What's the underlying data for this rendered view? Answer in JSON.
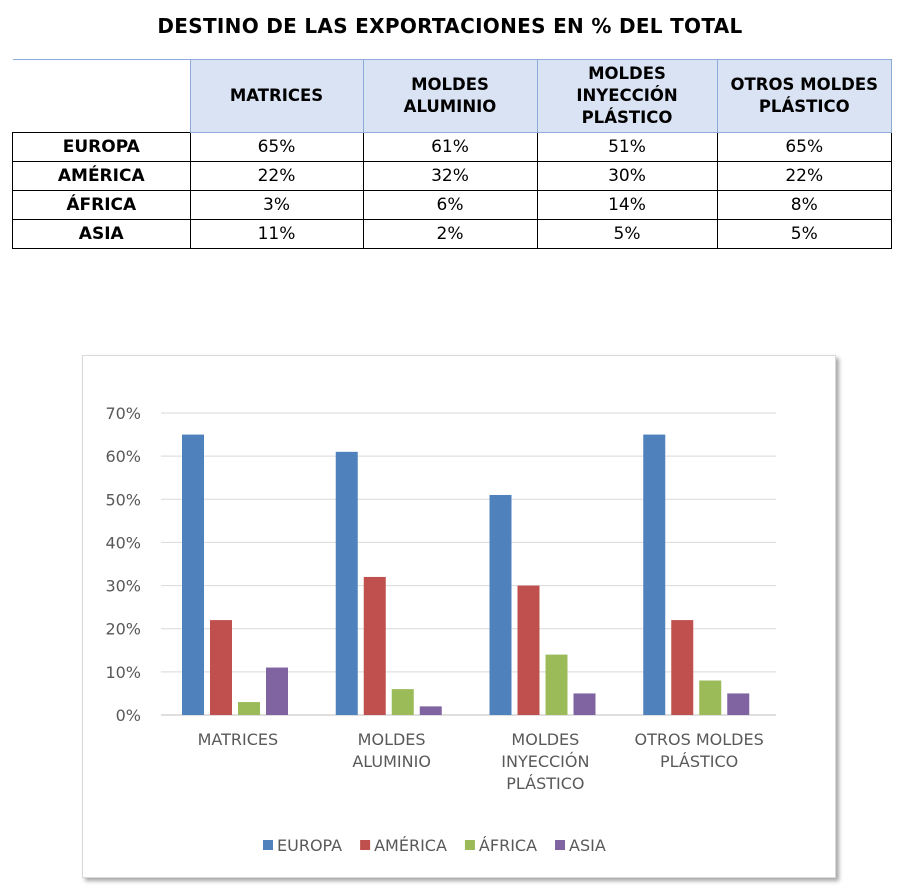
{
  "title": "DESTINO DE LAS EXPORTACIONES EN % DEL TOTAL",
  "table": {
    "headers": [
      "MATRICES",
      "MOLDES ALUMINIO",
      "MOLDES INYECCIÓN PLÁSTICO",
      "OTROS MOLDES PLÁSTICO"
    ],
    "rows": [
      {
        "label": "EUROPA",
        "values": [
          "65%",
          "61%",
          "51%",
          "65%"
        ]
      },
      {
        "label": "AMÉRICA",
        "values": [
          "22%",
          "32%",
          "30%",
          "22%"
        ]
      },
      {
        "label": "ÁFRICA",
        "values": [
          "3%",
          "6%",
          "14%",
          "8%"
        ]
      },
      {
        "label": "ASIA",
        "values": [
          "11%",
          "2%",
          "5%",
          "5%"
        ]
      }
    ]
  },
  "chart_data": {
    "type": "bar",
    "categories": [
      [
        "MATRICES"
      ],
      [
        "MOLDES",
        "ALUMINIO"
      ],
      [
        "MOLDES",
        "INYECCIÓN",
        "PLÁSTICO"
      ],
      [
        "OTROS MOLDES",
        "PLÁSTICO"
      ]
    ],
    "series": [
      {
        "name": "EUROPA",
        "values": [
          65,
          61,
          51,
          65
        ],
        "color": "#4f81bd"
      },
      {
        "name": "AMÉRICA",
        "values": [
          22,
          32,
          30,
          22
        ],
        "color": "#c0504d"
      },
      {
        "name": "ÁFRICA",
        "values": [
          3,
          6,
          14,
          8
        ],
        "color": "#9bbb59"
      },
      {
        "name": "ASIA",
        "values": [
          11,
          2,
          5,
          5
        ],
        "color": "#8064a2"
      }
    ],
    "yticks": [
      "0%",
      "10%",
      "20%",
      "30%",
      "40%",
      "50%",
      "60%",
      "70%"
    ],
    "ylim": [
      0,
      70
    ],
    "grid": true,
    "legend": "bottom"
  }
}
